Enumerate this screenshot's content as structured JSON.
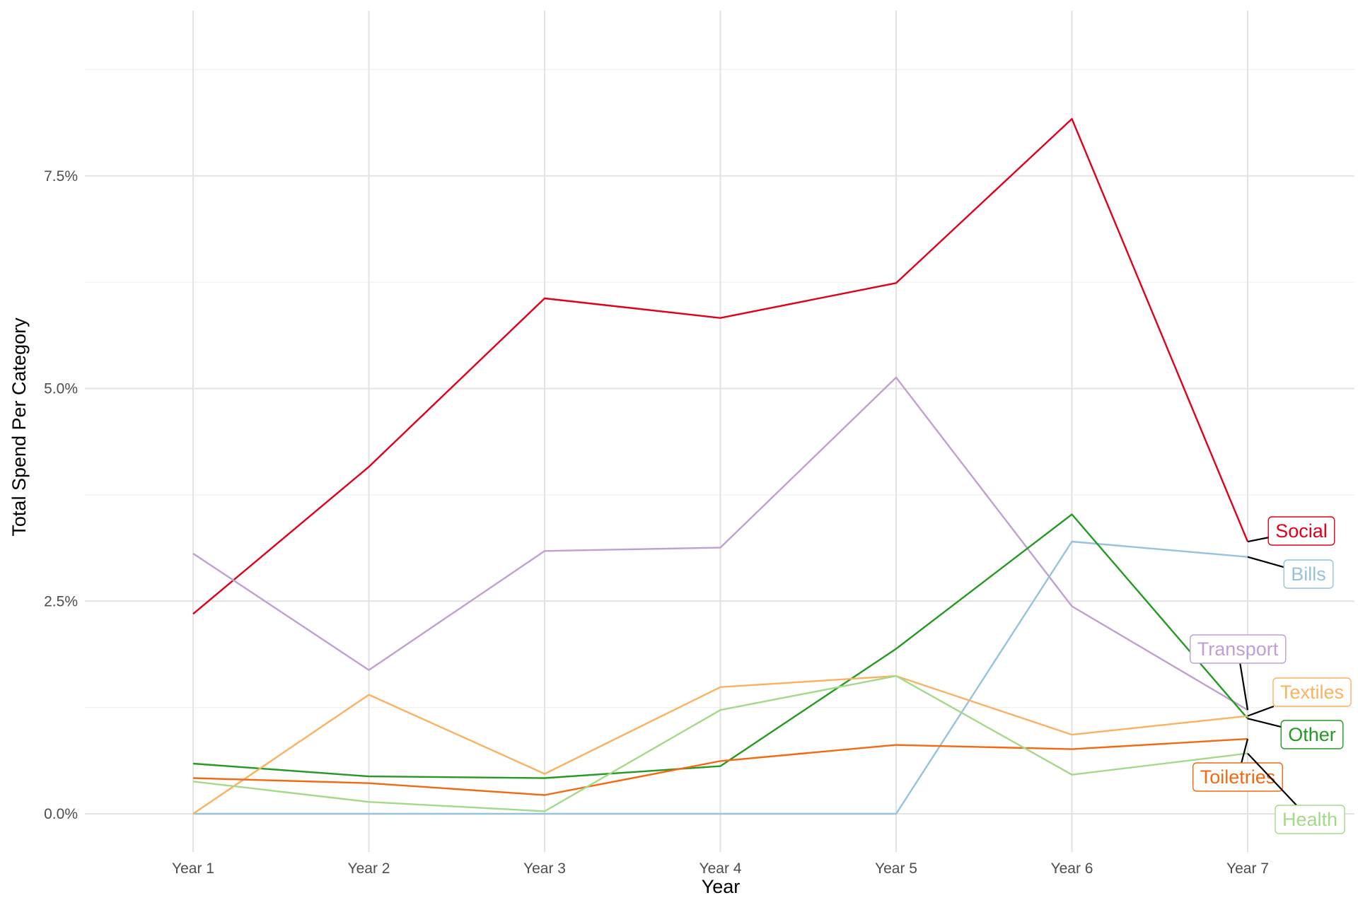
{
  "chart_data": {
    "type": "line",
    "title": "",
    "xlabel": "Year",
    "ylabel": "Total Spend Per Category",
    "categories": [
      "Year 1",
      "Year 2",
      "Year 3",
      "Year 4",
      "Year 5",
      "Year 6",
      "Year 7"
    ],
    "ylim": [
      -0.4,
      9.0
    ],
    "yticks": [
      0,
      2.5,
      5,
      7.5
    ],
    "ytick_labels": [
      "0.0%",
      "2.5%",
      "5.0%",
      "7.5%"
    ],
    "grid": true,
    "legend": "direct labels at right end of each line",
    "series": [
      {
        "name": "Social",
        "color": "#e0001b",
        "values": [
          2.35,
          4.08,
          6.06,
          5.83,
          6.24,
          8.17,
          3.2
        ]
      },
      {
        "name": "Transport",
        "color": "#c09fd1",
        "values": [
          3.06,
          1.69,
          3.09,
          3.13,
          5.13,
          2.44,
          1.22
        ]
      },
      {
        "name": "Bills",
        "color": "#94c3dc",
        "values": [
          0.0,
          0.0,
          0.0,
          0.0,
          0.0,
          3.2,
          3.02
        ]
      },
      {
        "name": "Other",
        "color": "#259a23",
        "values": [
          0.59,
          0.44,
          0.42,
          0.56,
          1.94,
          3.52,
          1.12
        ]
      },
      {
        "name": "Textiles",
        "color": "#fbb260",
        "values": [
          0.0,
          1.4,
          0.47,
          1.49,
          1.62,
          0.93,
          1.15
        ]
      },
      {
        "name": "Toiletries",
        "color": "#f5680f",
        "values": [
          0.42,
          0.36,
          0.22,
          0.62,
          0.81,
          0.76,
          0.88
        ]
      },
      {
        "name": "Health",
        "color": "#a5d98a",
        "values": [
          0.38,
          0.14,
          0.03,
          1.22,
          1.62,
          0.46,
          0.71
        ]
      }
    ]
  }
}
